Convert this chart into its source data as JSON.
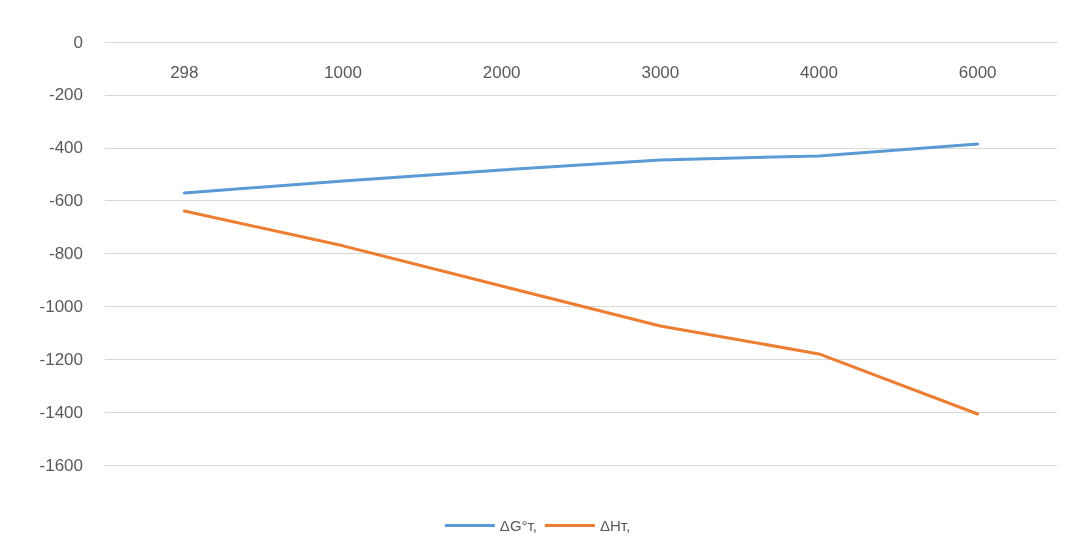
{
  "chart_data": {
    "type": "line",
    "categories": [
      "298",
      "1000",
      "2000",
      "3000",
      "4000",
      "6000"
    ],
    "series": [
      {
        "name": "ΔG°т,",
        "color": "#5b9bd5",
        "values": [
          -571,
          -526,
          -484,
          -446,
          -431,
          -386
        ]
      },
      {
        "name": "ΔHт,",
        "color": "#ed7d31",
        "values": [
          -639,
          -771,
          -923,
          -1074,
          -1180,
          -1407
        ]
      }
    ],
    "ylim": [
      -1600,
      0
    ],
    "yticks": [
      -1600,
      -1400,
      -1200,
      -1000,
      -800,
      -600,
      -400,
      -200,
      0
    ],
    "grid": "y",
    "legend": "bottom",
    "marker": "none",
    "line_style": "solid"
  }
}
